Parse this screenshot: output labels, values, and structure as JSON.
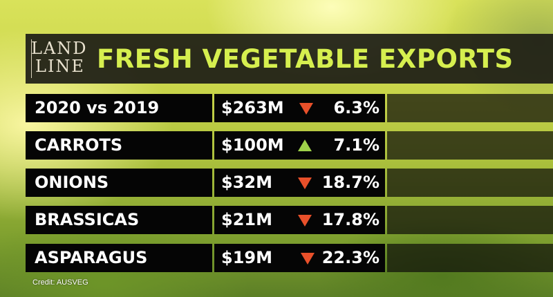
{
  "logo": {
    "line1": "LAND",
    "line2": "LINE"
  },
  "title": "FRESH VEGETABLE EXPORTS",
  "rows": [
    {
      "label": "2020 vs 2019",
      "value": "$263M",
      "direction": "down",
      "change": "6.3%"
    },
    {
      "label": "CARROTS",
      "value": "$100M",
      "direction": "up",
      "change": "7.1%"
    },
    {
      "label": "ONIONS",
      "value": "$32M",
      "direction": "down",
      "change": "18.7%"
    },
    {
      "label": "BRASSICAS",
      "value": "$21M",
      "direction": "down",
      "change": "17.8%"
    },
    {
      "label": "ASPARAGUS",
      "value": "$19M",
      "direction": "down",
      "change": "22.3%"
    }
  ],
  "credit": "Credit: AUSVEG",
  "colors": {
    "title": "#d6ef4f",
    "down_arrow": "#e8502a",
    "up_arrow": "#9fd24a",
    "row_background": "#050505"
  },
  "icons": {
    "down": "down-arrow-icon",
    "up": "up-arrow-icon"
  }
}
